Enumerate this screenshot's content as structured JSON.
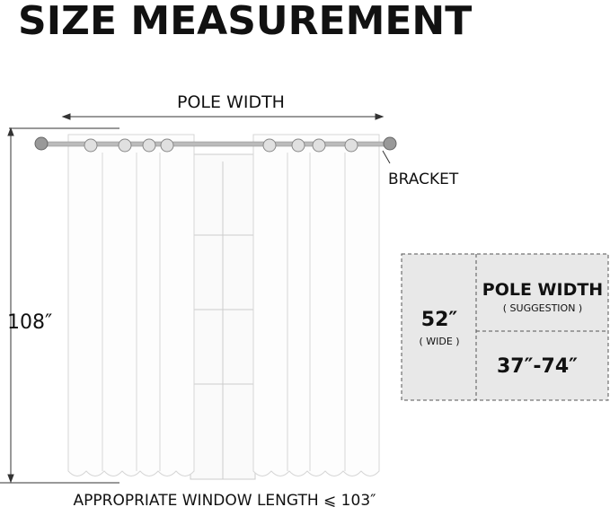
{
  "title": "SIZE MEASUREMENT",
  "pole_width_label": "POLE WIDTH",
  "bracket_label": "BRACKET",
  "length_label": "108″",
  "bottom_label": "APPROPRIATE WINDOW LENGTH ⩽ 103″",
  "table": {
    "width_value": "52″",
    "width_note": "( WIDE )",
    "pole_header": "POLE WIDTH",
    "pole_note": "( SUGGESTION )",
    "pole_value": "37″-74″"
  },
  "colors": {
    "box_fill": "#e8e8e8",
    "text": "#111111"
  }
}
